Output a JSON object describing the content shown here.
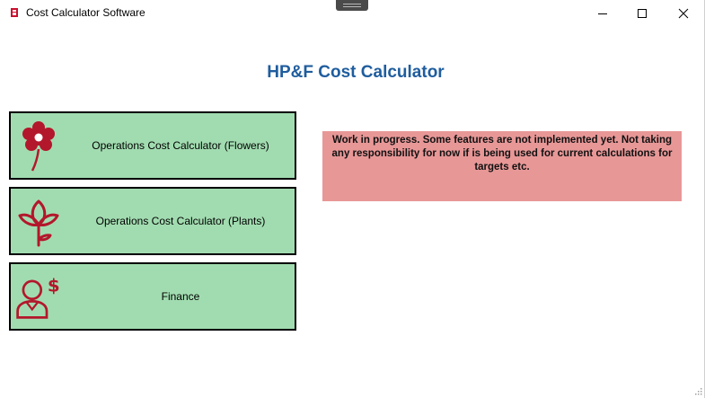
{
  "window": {
    "title": "Cost Calculator Software"
  },
  "main": {
    "heading": "HP&F Cost Calculator",
    "cards": [
      {
        "label": "Operations Cost Calculator (Flowers)",
        "icon": "flower-icon"
      },
      {
        "label": "Operations Cost Calculator (Plants)",
        "icon": "plant-icon"
      },
      {
        "label": "Finance",
        "icon": "finance-person-dollar-icon"
      }
    ],
    "notice": "Work in progress. Some features are not implemented yet. Not taking any responsibility for now if is being used for current calculations for targets etc."
  },
  "colors": {
    "accent": "#1f5d9e",
    "card_bg": "#a1dcb0",
    "icon": "#b3172b",
    "notice_bg": "#e89797"
  }
}
